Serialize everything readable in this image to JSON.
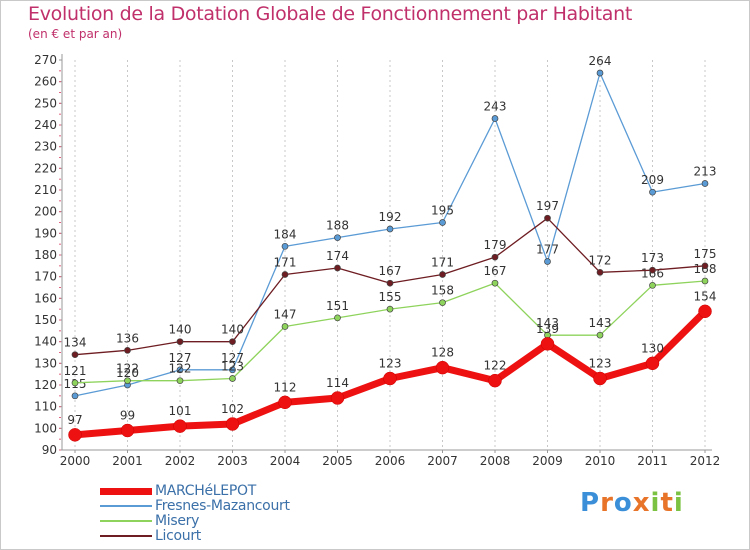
{
  "title": "Evolution de la Dotation Globale de Fonctionnement par Habitant",
  "subtitle": "(en € et par an)",
  "brand": {
    "letters": [
      "P",
      "r",
      "o",
      "x",
      "i",
      "t",
      "i"
    ],
    "colors": [
      "#3a8fd8",
      "#e8742a",
      "#3a8fd8",
      "#e8742a",
      "#7cc242",
      "#e8742a",
      "#7cc242"
    ]
  },
  "chart_data": {
    "type": "line",
    "title": "Evolution de la Dotation Globale de Fonctionnement par Habitant",
    "ylabel": "(en € et par an)",
    "xlabel": "",
    "ylim": [
      90,
      270
    ],
    "yticks": [
      90,
      100,
      110,
      120,
      130,
      140,
      150,
      160,
      170,
      180,
      190,
      200,
      210,
      220,
      230,
      240,
      250,
      260,
      270
    ],
    "categories": [
      "2000",
      "2001",
      "2002",
      "2003",
      "2004",
      "2005",
      "2006",
      "2007",
      "2008",
      "2009",
      "2010",
      "2011",
      "2012"
    ],
    "grid": "vertical",
    "legend_position": "bottom-left",
    "series": [
      {
        "name": "Fresnes-Mazancourt",
        "color": "#5b9bd5",
        "width": "thin",
        "values": [
          115,
          120,
          127,
          127,
          184,
          188,
          192,
          195,
          243,
          177,
          264,
          209,
          213
        ],
        "labels": [
          "115",
          "120",
          "127",
          "127",
          "184",
          "188",
          "192",
          "195",
          "243",
          "177",
          "264",
          "209",
          "213"
        ]
      },
      {
        "name": "Misery",
        "color": "#8ed35c",
        "width": "thin",
        "values": [
          121,
          122,
          122,
          123,
          147,
          151,
          155,
          158,
          167,
          143,
          143,
          166,
          168
        ],
        "labels": [
          "121",
          "122",
          "122",
          "123",
          "147",
          "151",
          "155",
          "158",
          "167",
          "143",
          "143",
          "166",
          "168"
        ]
      },
      {
        "name": "Licourt",
        "color": "#6e1d22",
        "width": "thin",
        "values": [
          134,
          136,
          140,
          140,
          171,
          174,
          167,
          171,
          179,
          197,
          172,
          173,
          175
        ],
        "labels": [
          "134",
          "136",
          "140",
          "140",
          "171",
          "174",
          "167",
          "171",
          "179",
          "197",
          "172",
          "173",
          "175"
        ]
      },
      {
        "name": "MARCHéLEPOT",
        "color": "#ee1111",
        "width": "thick",
        "values": [
          97,
          99,
          101,
          102,
          112,
          114,
          123,
          128,
          122,
          139,
          123,
          130,
          154
        ],
        "labels": [
          "97",
          "99",
          "101",
          "102",
          "112",
          "114",
          "123",
          "128",
          "122",
          "139",
          "123",
          "130",
          "154"
        ]
      }
    ],
    "legend_order": [
      "MARCHéLEPOT",
      "Fresnes-Mazancourt",
      "Misery",
      "Licourt"
    ]
  }
}
